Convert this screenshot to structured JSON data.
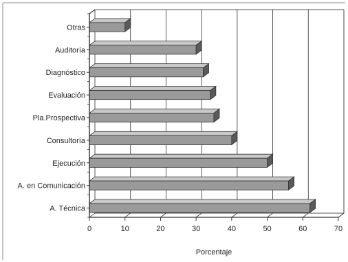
{
  "chart_data": {
    "type": "bar",
    "orientation": "horizontal",
    "categories": [
      "Otras",
      "Auditoría",
      "Diagnóstico",
      "Evaluación",
      "Pla.Prospectiva",
      "Consultoría",
      "Ejecución",
      "A. en Comunicación",
      "A. Técnica"
    ],
    "values": [
      10,
      30,
      32,
      34,
      35,
      40,
      50,
      56,
      62
    ],
    "xlabel": "Porcentaje",
    "ylabel": "",
    "xlim": [
      0,
      70
    ],
    "xticks": [
      "0",
      "10",
      "20",
      "30",
      "40",
      "50",
      "60",
      "70"
    ],
    "grid": "vertical",
    "legend": "none",
    "colors": {
      "bar_fill": "#9a9a9a",
      "bar_top": "#c8c8c8",
      "bar_end": "#5a5a5a",
      "axis": "#333333",
      "grid": "#444444",
      "frame": "#555555"
    }
  }
}
